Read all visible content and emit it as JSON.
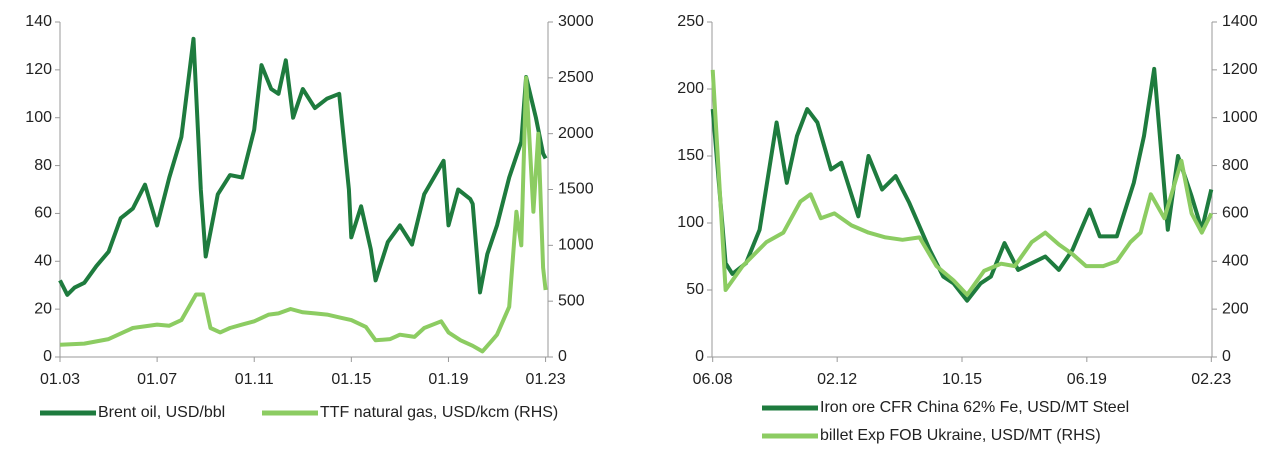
{
  "chart_data": [
    {
      "type": "line",
      "xlim": [
        2003,
        2023.1
      ],
      "xticks": [
        {
          "value": 2003,
          "label": "01.03"
        },
        {
          "value": 2007,
          "label": "01.07"
        },
        {
          "value": 2011,
          "label": "01.11"
        },
        {
          "value": 2015,
          "label": "01.15"
        },
        {
          "value": 2019,
          "label": "01.19"
        },
        {
          "value": 2023,
          "label": "01.23"
        }
      ],
      "ylim": [
        0,
        140
      ],
      "yticks": [
        0,
        20,
        40,
        60,
        80,
        100,
        120,
        140
      ],
      "y2lim": [
        0,
        3000
      ],
      "y2ticks": [
        0,
        500,
        1000,
        1500,
        2000,
        2500,
        3000
      ],
      "series": [
        {
          "name": "Brent oil, USD/bbl",
          "color": "#1e7b3e",
          "x": [
            2003,
            2003.3,
            2003.6,
            2004,
            2004.5,
            2005,
            2005.5,
            2006,
            2006.5,
            2007,
            2007.5,
            2008,
            2008.5,
            2008.8,
            2009,
            2009.5,
            2010,
            2010.5,
            2011,
            2011.3,
            2011.7,
            2012,
            2012.3,
            2012.6,
            2013,
            2013.5,
            2014,
            2014.5,
            2014.9,
            2015,
            2015.4,
            2015.8,
            2016,
            2016.5,
            2017,
            2017.5,
            2018,
            2018.8,
            2019,
            2019.4,
            2019.9,
            2020,
            2020.3,
            2020.6,
            2021,
            2021.5,
            2022,
            2022.2,
            2022.6,
            2022.9,
            2023
          ],
          "values": [
            32,
            26,
            29,
            31,
            38,
            44,
            58,
            62,
            72,
            55,
            75,
            92,
            133,
            70,
            42,
            68,
            76,
            75,
            95,
            122,
            112,
            110,
            124,
            100,
            112,
            104,
            108,
            110,
            70,
            50,
            63,
            45,
            32,
            48,
            55,
            47,
            68,
            82,
            55,
            70,
            66,
            64,
            27,
            43,
            55,
            75,
            90,
            117,
            100,
            85,
            83
          ]
        },
        {
          "name": "TTF natural gas, USD/kcm (RHS)",
          "color": "#8ccc62",
          "axis": "y2",
          "x": [
            2003,
            2004,
            2005,
            2006,
            2007,
            2007.5,
            2008,
            2008.6,
            2008.9,
            2009.2,
            2009.6,
            2010,
            2010.5,
            2011,
            2011.6,
            2012,
            2012.5,
            2013,
            2013.5,
            2014,
            2014.6,
            2015,
            2015.6,
            2016,
            2016.6,
            2017,
            2017.6,
            2018,
            2018.7,
            2019,
            2019.5,
            2020,
            2020.4,
            2020.8,
            2021,
            2021.5,
            2021.8,
            2022,
            2022.2,
            2022.5,
            2022.7,
            2022.9,
            2023
          ],
          "values": [
            110,
            120,
            160,
            260,
            290,
            280,
            330,
            560,
            560,
            260,
            220,
            260,
            290,
            320,
            380,
            390,
            430,
            400,
            390,
            380,
            350,
            330,
            270,
            150,
            160,
            200,
            180,
            260,
            320,
            220,
            150,
            100,
            50,
            150,
            200,
            450,
            1300,
            1000,
            2500,
            1300,
            2000,
            800,
            600
          ]
        }
      ]
    },
    {
      "type": "line",
      "xlim": [
        2008.4,
        2023.1
      ],
      "xticks": [
        {
          "value": 2008.42,
          "label": "06.08"
        },
        {
          "value": 2012.08,
          "label": "02.12"
        },
        {
          "value": 2015.75,
          "label": "10.15"
        },
        {
          "value": 2019.42,
          "label": "06.19"
        },
        {
          "value": 2023.08,
          "label": "02.23"
        }
      ],
      "ylim": [
        0,
        250
      ],
      "yticks": [
        0,
        50,
        100,
        150,
        200,
        250
      ],
      "y2lim": [
        0,
        1400
      ],
      "y2ticks": [
        0,
        200,
        400,
        600,
        800,
        1000,
        1200,
        1400
      ],
      "series": [
        {
          "name": "Iron ore CFR China 62% Fe, USD/MT Steel",
          "color": "#1e7b3e",
          "x": [
            2008.42,
            2008.8,
            2009,
            2009.4,
            2009.8,
            2010.3,
            2010.6,
            2010.9,
            2011.2,
            2011.5,
            2011.9,
            2012.2,
            2012.7,
            2013,
            2013.4,
            2013.8,
            2014.2,
            2014.8,
            2015.2,
            2015.5,
            2015.9,
            2016.3,
            2016.6,
            2017,
            2017.4,
            2017.8,
            2018.2,
            2018.6,
            2019,
            2019.5,
            2019.8,
            2020.3,
            2020.8,
            2021.1,
            2021.4,
            2021.8,
            2022.1,
            2022.5,
            2022.8,
            2023.08
          ],
          "values": [
            185,
            70,
            62,
            70,
            95,
            175,
            130,
            165,
            185,
            175,
            140,
            145,
            105,
            150,
            125,
            135,
            115,
            80,
            60,
            55,
            42,
            55,
            60,
            85,
            65,
            70,
            75,
            65,
            80,
            110,
            90,
            90,
            130,
            165,
            215,
            95,
            150,
            120,
            95,
            125
          ]
        },
        {
          "name": "billet Exp FOB Ukraine, USD/MT (RHS)",
          "color": "#8ccc62",
          "axis": "y2",
          "x": [
            2008.42,
            2008.8,
            2009.3,
            2010,
            2010.5,
            2011,
            2011.3,
            2011.6,
            2012,
            2012.5,
            2013,
            2013.5,
            2014,
            2014.5,
            2015,
            2015.5,
            2015.9,
            2016.4,
            2016.9,
            2017.3,
            2017.8,
            2018.2,
            2018.6,
            2019,
            2019.4,
            2019.9,
            2020.3,
            2020.7,
            2021,
            2021.3,
            2021.7,
            2022.2,
            2022.5,
            2022.8,
            2023.08
          ],
          "values": [
            1200,
            280,
            380,
            480,
            520,
            650,
            680,
            580,
            600,
            550,
            520,
            500,
            490,
            500,
            380,
            320,
            260,
            360,
            390,
            380,
            480,
            520,
            470,
            430,
            380,
            380,
            400,
            480,
            520,
            680,
            580,
            820,
            600,
            520,
            600
          ]
        }
      ]
    }
  ]
}
